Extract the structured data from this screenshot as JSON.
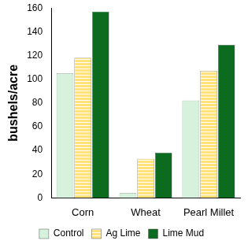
{
  "chart_data": {
    "type": "bar",
    "categories": [
      "Corn",
      "Wheat",
      "Pearl Millet"
    ],
    "series": [
      {
        "name": "Control",
        "color": "#d6f2dc",
        "values": [
          105,
          4,
          82
        ]
      },
      {
        "name": "Ag Lime",
        "color": "#ffe27a",
        "values": [
          118,
          33,
          107
        ]
      },
      {
        "name": "Lime Mud",
        "color": "#0b6b1e",
        "values": [
          157,
          38,
          129
        ]
      }
    ],
    "y_label": "bushels/acre",
    "ylim": [
      0,
      160
    ],
    "yticks": [
      0,
      20,
      40,
      60,
      80,
      100,
      120,
      140,
      160
    ],
    "grid": false,
    "legend": "bottom"
  }
}
